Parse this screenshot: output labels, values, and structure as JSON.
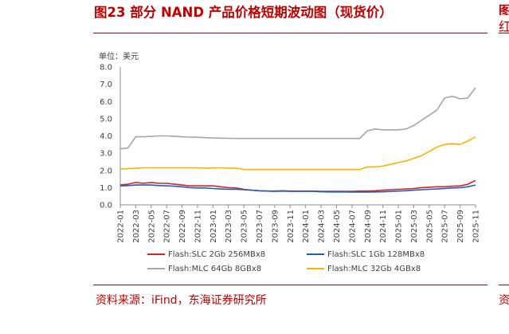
{
  "header": {
    "title": "图23  部分 NAND 产品价格短期波动图（现货价）",
    "edge_title": "图",
    "edge_subtitle": "红"
  },
  "footer": {
    "source": "资料来源：iFind，东海证券研究所",
    "edge_source": "资"
  },
  "colors": {
    "brand_red": "#c00000",
    "slc_2gb": "#d6232a",
    "slc_1gb": "#1f5fb4",
    "mlc_64gb": "#a6a6a6",
    "mlc_32gb": "#f7b500"
  },
  "chart_data": {
    "type": "line",
    "unit_label": "单位：美元",
    "ylim": [
      0,
      8
    ],
    "yticks": [
      "0.0",
      "1.0",
      "2.0",
      "3.0",
      "4.0",
      "5.0",
      "6.0",
      "7.0",
      "8.0"
    ],
    "x_tick_labels": [
      "2022-01",
      "2022-03",
      "2022-05",
      "2022-07",
      "2022-09",
      "2022-11",
      "2023-01",
      "2023-03",
      "2023-05",
      "2023-07",
      "2023-09",
      "2023-11",
      "2024-01",
      "2024-03",
      "2024-05",
      "2024-07",
      "2024-09",
      "2024-11",
      "2025-01",
      "2025-03",
      "2025-05",
      "2025-07",
      "2025-09",
      "2025-11"
    ],
    "x_start": "2022-01",
    "legend_position": "bottom",
    "grid": false,
    "series": [
      {
        "name": "Flash:SLC 2Gb 256MBx8",
        "color": "#d6232a",
        "points": [
          [
            "2022-01",
            1.15
          ],
          [
            "2022-02",
            1.2
          ],
          [
            "2022-03",
            1.3
          ],
          [
            "2022-04",
            1.25
          ],
          [
            "2022-05",
            1.3
          ],
          [
            "2022-06",
            1.25
          ],
          [
            "2022-07",
            1.25
          ],
          [
            "2022-08",
            1.2
          ],
          [
            "2022-09",
            1.15
          ],
          [
            "2022-10",
            1.1
          ],
          [
            "2022-11",
            1.1
          ],
          [
            "2022-12",
            1.1
          ],
          [
            "2023-01",
            1.1
          ],
          [
            "2023-02",
            1.05
          ],
          [
            "2023-03",
            1.0
          ],
          [
            "2023-04",
            0.98
          ],
          [
            "2023-05",
            0.9
          ],
          [
            "2023-06",
            0.85
          ],
          [
            "2023-07",
            0.82
          ],
          [
            "2023-08",
            0.8
          ],
          [
            "2023-09",
            0.8
          ],
          [
            "2023-10",
            0.82
          ],
          [
            "2023-11",
            0.8
          ],
          [
            "2023-12",
            0.8
          ],
          [
            "2024-01",
            0.8
          ],
          [
            "2024-02",
            0.8
          ],
          [
            "2024-03",
            0.78
          ],
          [
            "2024-04",
            0.78
          ],
          [
            "2024-05",
            0.78
          ],
          [
            "2024-06",
            0.78
          ],
          [
            "2024-07",
            0.78
          ],
          [
            "2024-08",
            0.8
          ],
          [
            "2024-09",
            0.8
          ],
          [
            "2024-10",
            0.82
          ],
          [
            "2024-11",
            0.85
          ],
          [
            "2024-12",
            0.88
          ],
          [
            "2025-01",
            0.9
          ],
          [
            "2025-02",
            0.92
          ],
          [
            "2025-03",
            0.95
          ],
          [
            "2025-04",
            1.0
          ],
          [
            "2025-05",
            1.02
          ],
          [
            "2025-06",
            1.05
          ],
          [
            "2025-07",
            1.05
          ],
          [
            "2025-08",
            1.08
          ],
          [
            "2025-09",
            1.1
          ],
          [
            "2025-10",
            1.2
          ],
          [
            "2025-11",
            1.42
          ]
        ]
      },
      {
        "name": "Flash:SLC 1Gb 128MBx8",
        "color": "#1f5fb4",
        "points": [
          [
            "2022-01",
            1.1
          ],
          [
            "2022-02",
            1.12
          ],
          [
            "2022-03",
            1.15
          ],
          [
            "2022-04",
            1.15
          ],
          [
            "2022-05",
            1.15
          ],
          [
            "2022-06",
            1.12
          ],
          [
            "2022-07",
            1.1
          ],
          [
            "2022-08",
            1.08
          ],
          [
            "2022-09",
            1.05
          ],
          [
            "2022-10",
            1.0
          ],
          [
            "2022-11",
            0.98
          ],
          [
            "2022-12",
            0.98
          ],
          [
            "2023-01",
            0.95
          ],
          [
            "2023-02",
            0.92
          ],
          [
            "2023-03",
            0.9
          ],
          [
            "2023-04",
            0.9
          ],
          [
            "2023-05",
            0.88
          ],
          [
            "2023-06",
            0.85
          ],
          [
            "2023-07",
            0.82
          ],
          [
            "2023-08",
            0.8
          ],
          [
            "2023-09",
            0.78
          ],
          [
            "2023-10",
            0.8
          ],
          [
            "2023-11",
            0.78
          ],
          [
            "2023-12",
            0.78
          ],
          [
            "2024-01",
            0.78
          ],
          [
            "2024-02",
            0.78
          ],
          [
            "2024-03",
            0.76
          ],
          [
            "2024-04",
            0.75
          ],
          [
            "2024-05",
            0.75
          ],
          [
            "2024-06",
            0.75
          ],
          [
            "2024-07",
            0.74
          ],
          [
            "2024-08",
            0.74
          ],
          [
            "2024-09",
            0.74
          ],
          [
            "2024-10",
            0.75
          ],
          [
            "2024-11",
            0.76
          ],
          [
            "2024-12",
            0.78
          ],
          [
            "2025-01",
            0.8
          ],
          [
            "2025-02",
            0.82
          ],
          [
            "2025-03",
            0.85
          ],
          [
            "2025-04",
            0.88
          ],
          [
            "2025-05",
            0.9
          ],
          [
            "2025-06",
            0.92
          ],
          [
            "2025-07",
            0.95
          ],
          [
            "2025-08",
            0.98
          ],
          [
            "2025-09",
            1.0
          ],
          [
            "2025-10",
            1.05
          ],
          [
            "2025-11",
            1.15
          ]
        ]
      },
      {
        "name": "Flash:MLC 64Gb 8GBx8",
        "color": "#a6a6a6",
        "points": [
          [
            "2022-01",
            3.25
          ],
          [
            "2022-02",
            3.3
          ],
          [
            "2022-03",
            3.95
          ],
          [
            "2022-04",
            3.95
          ],
          [
            "2022-05",
            3.97
          ],
          [
            "2022-06",
            4.0
          ],
          [
            "2022-07",
            4.0
          ],
          [
            "2022-08",
            3.98
          ],
          [
            "2022-09",
            3.95
          ],
          [
            "2022-10",
            3.93
          ],
          [
            "2022-11",
            3.92
          ],
          [
            "2022-12",
            3.9
          ],
          [
            "2023-01",
            3.88
          ],
          [
            "2023-02",
            3.87
          ],
          [
            "2023-03",
            3.86
          ],
          [
            "2023-04",
            3.85
          ],
          [
            "2023-05",
            3.85
          ],
          [
            "2023-06",
            3.85
          ],
          [
            "2023-07",
            3.85
          ],
          [
            "2023-08",
            3.85
          ],
          [
            "2023-09",
            3.85
          ],
          [
            "2023-10",
            3.85
          ],
          [
            "2023-11",
            3.85
          ],
          [
            "2023-12",
            3.85
          ],
          [
            "2024-01",
            3.85
          ],
          [
            "2024-02",
            3.85
          ],
          [
            "2024-03",
            3.85
          ],
          [
            "2024-04",
            3.85
          ],
          [
            "2024-05",
            3.85
          ],
          [
            "2024-06",
            3.85
          ],
          [
            "2024-07",
            3.85
          ],
          [
            "2024-08",
            3.85
          ],
          [
            "2024-09",
            4.3
          ],
          [
            "2024-10",
            4.4
          ],
          [
            "2024-11",
            4.35
          ],
          [
            "2024-12",
            4.35
          ],
          [
            "2025-01",
            4.35
          ],
          [
            "2025-02",
            4.4
          ],
          [
            "2025-03",
            4.6
          ],
          [
            "2025-04",
            4.9
          ],
          [
            "2025-05",
            5.2
          ],
          [
            "2025-06",
            5.5
          ],
          [
            "2025-07",
            6.2
          ],
          [
            "2025-08",
            6.3
          ],
          [
            "2025-09",
            6.15
          ],
          [
            "2025-10",
            6.2
          ],
          [
            "2025-11",
            6.8
          ]
        ]
      },
      {
        "name": "Flash:MLC 32Gb 4GBx8",
        "color": "#f7b500",
        "points": [
          [
            "2022-01",
            2.08
          ],
          [
            "2022-02",
            2.1
          ],
          [
            "2022-03",
            2.12
          ],
          [
            "2022-04",
            2.15
          ],
          [
            "2022-05",
            2.15
          ],
          [
            "2022-06",
            2.15
          ],
          [
            "2022-07",
            2.15
          ],
          [
            "2022-08",
            2.15
          ],
          [
            "2022-09",
            2.15
          ],
          [
            "2022-10",
            2.15
          ],
          [
            "2022-11",
            2.14
          ],
          [
            "2022-12",
            2.13
          ],
          [
            "2023-01",
            2.14
          ],
          [
            "2023-02",
            2.15
          ],
          [
            "2023-03",
            2.13
          ],
          [
            "2023-04",
            2.13
          ],
          [
            "2023-05",
            2.06
          ],
          [
            "2023-06",
            2.05
          ],
          [
            "2023-07",
            2.05
          ],
          [
            "2023-08",
            2.05
          ],
          [
            "2023-09",
            2.05
          ],
          [
            "2023-10",
            2.05
          ],
          [
            "2023-11",
            2.05
          ],
          [
            "2023-12",
            2.05
          ],
          [
            "2024-01",
            2.05
          ],
          [
            "2024-02",
            2.05
          ],
          [
            "2024-03",
            2.05
          ],
          [
            "2024-04",
            2.05
          ],
          [
            "2024-05",
            2.05
          ],
          [
            "2024-06",
            2.05
          ],
          [
            "2024-07",
            2.05
          ],
          [
            "2024-08",
            2.05
          ],
          [
            "2024-09",
            2.2
          ],
          [
            "2024-10",
            2.2
          ],
          [
            "2024-11",
            2.25
          ],
          [
            "2024-12",
            2.35
          ],
          [
            "2025-01",
            2.45
          ],
          [
            "2025-02",
            2.55
          ],
          [
            "2025-03",
            2.7
          ],
          [
            "2025-04",
            2.85
          ],
          [
            "2025-05",
            3.1
          ],
          [
            "2025-06",
            3.35
          ],
          [
            "2025-07",
            3.5
          ],
          [
            "2025-08",
            3.55
          ],
          [
            "2025-09",
            3.5
          ],
          [
            "2025-10",
            3.7
          ],
          [
            "2025-11",
            3.95
          ]
        ]
      }
    ]
  }
}
